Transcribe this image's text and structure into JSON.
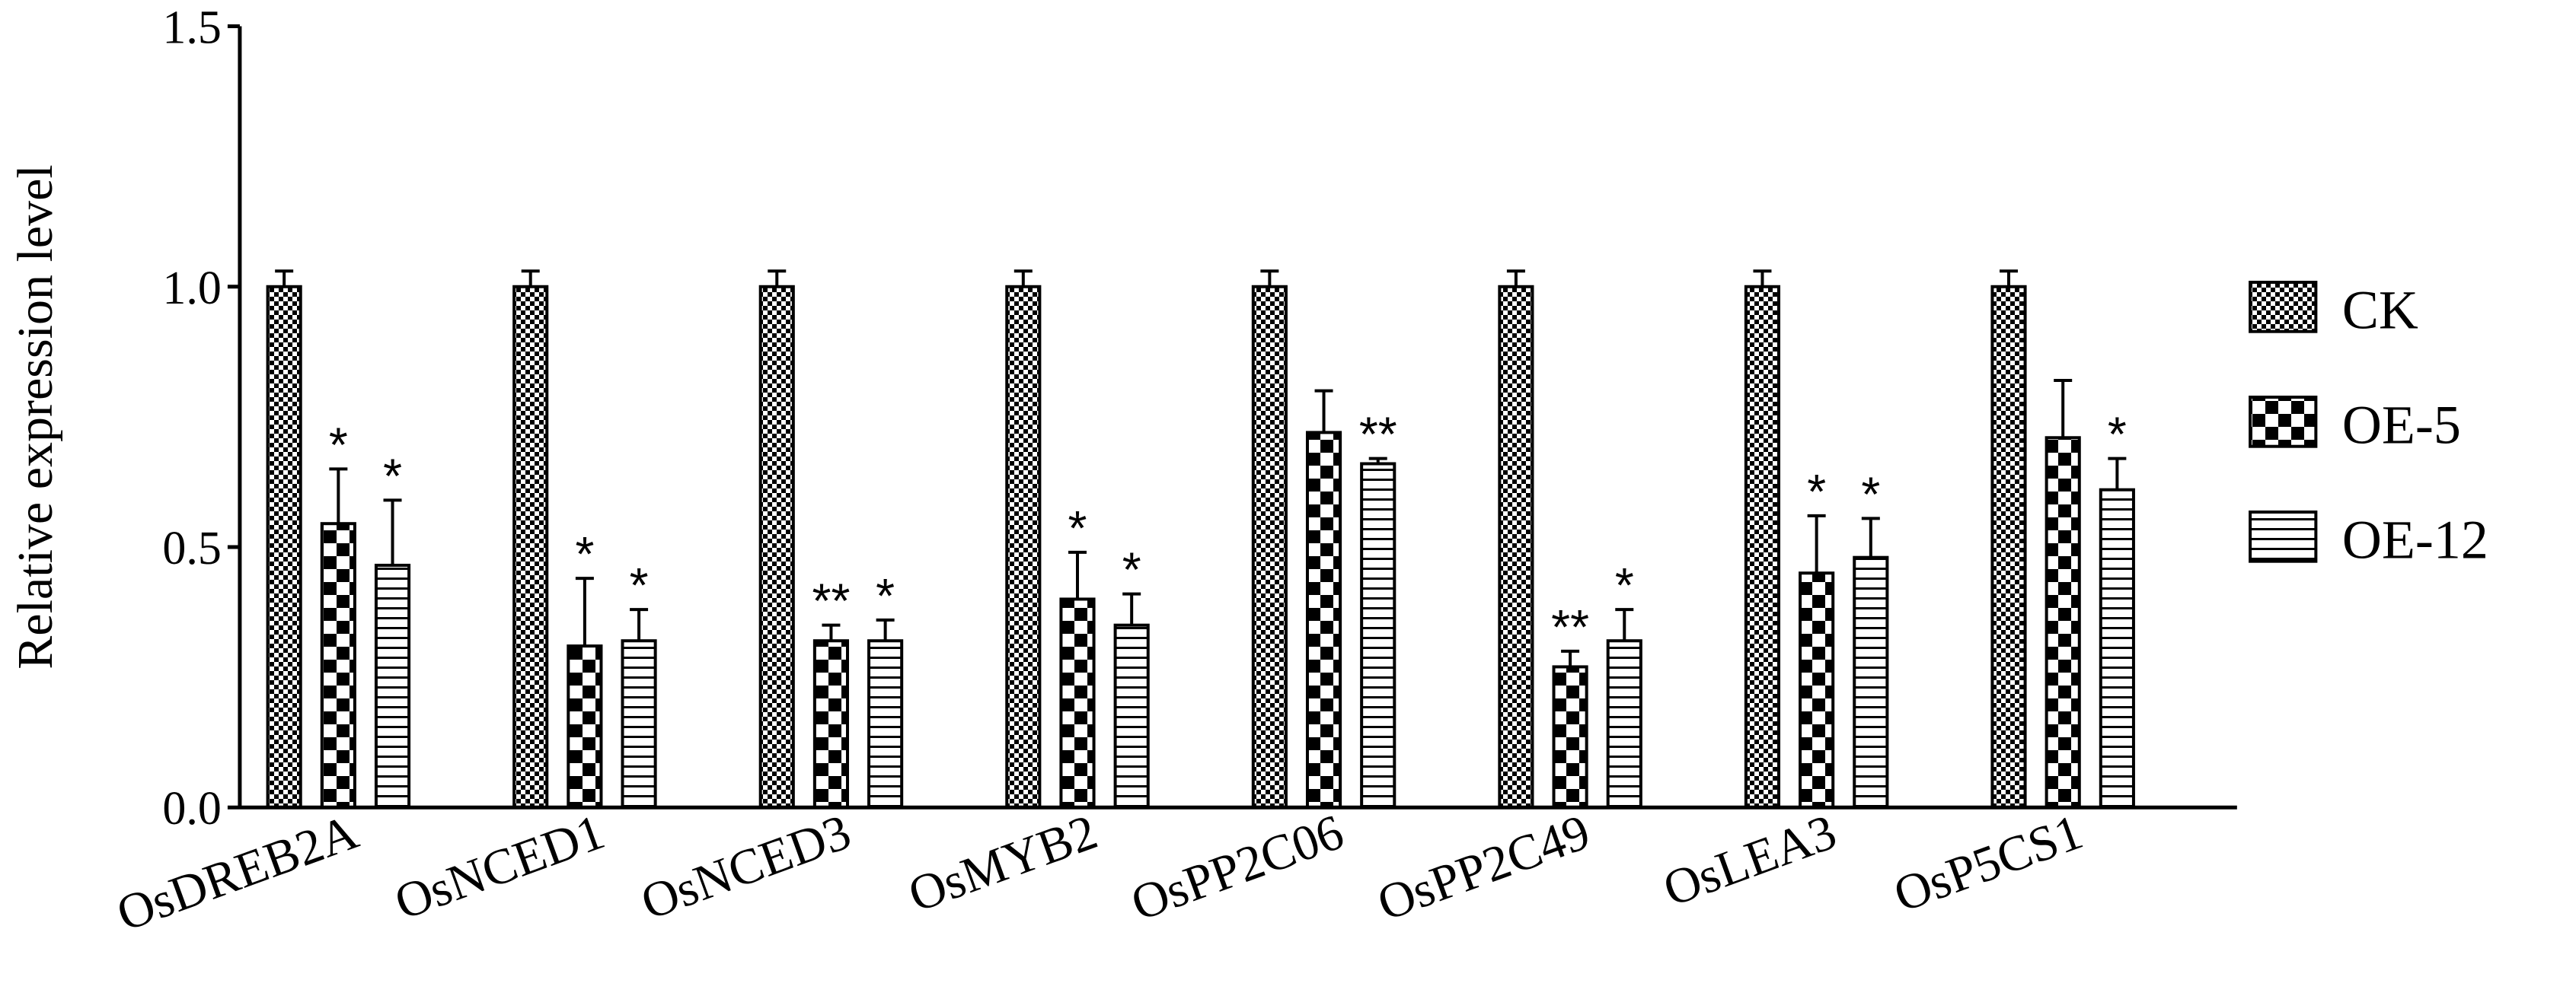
{
  "chart_data": {
    "type": "bar",
    "y_label": "Relative expression level",
    "categories": [
      "OsDREB2A",
      "OsNCED1",
      "OsNCED3",
      "OsMYB2",
      "OsPP2C06",
      "OsPP2C49",
      "OsLEA3",
      "OsP5CS1"
    ],
    "series": [
      {
        "name": "CK",
        "color": "#000000",
        "hatch": "fine-checker",
        "values": [
          1.0,
          1.0,
          1.0,
          1.0,
          1.0,
          1.0,
          1.0,
          1.0
        ],
        "errors": [
          0.03,
          0.03,
          0.03,
          0.03,
          0.03,
          0.03,
          0.03,
          0.03
        ],
        "annotations": [
          null,
          null,
          null,
          null,
          null,
          null,
          null,
          null
        ]
      },
      {
        "name": "OE-5",
        "color": "#000000",
        "hatch": "checker",
        "values": [
          0.545,
          0.31,
          0.32,
          0.4,
          0.72,
          0.27,
          0.45,
          0.71
        ],
        "errors": [
          0.105,
          0.13,
          0.03,
          0.09,
          0.08,
          0.03,
          0.11,
          0.11
        ],
        "annotations": [
          "*",
          "*",
          "**",
          "*",
          null,
          "**",
          "*",
          null
        ]
      },
      {
        "name": "OE-12",
        "color": "#000000",
        "hatch": "horizontal",
        "values": [
          0.465,
          0.32,
          0.32,
          0.35,
          0.66,
          0.32,
          0.48,
          0.61
        ],
        "errors": [
          0.125,
          0.06,
          0.04,
          0.06,
          0.01,
          0.06,
          0.075,
          0.06
        ],
        "annotations": [
          "*",
          "*",
          "*",
          "*",
          "**",
          "*",
          "*",
          "*"
        ]
      }
    ],
    "ylim": [
      0,
      1.5
    ],
    "yticks": [
      {
        "value": 0,
        "label": "0.0"
      },
      0.5,
      {
        "value": 1,
        "label": "1.0"
      },
      1.5
    ],
    "legend": "right"
  }
}
